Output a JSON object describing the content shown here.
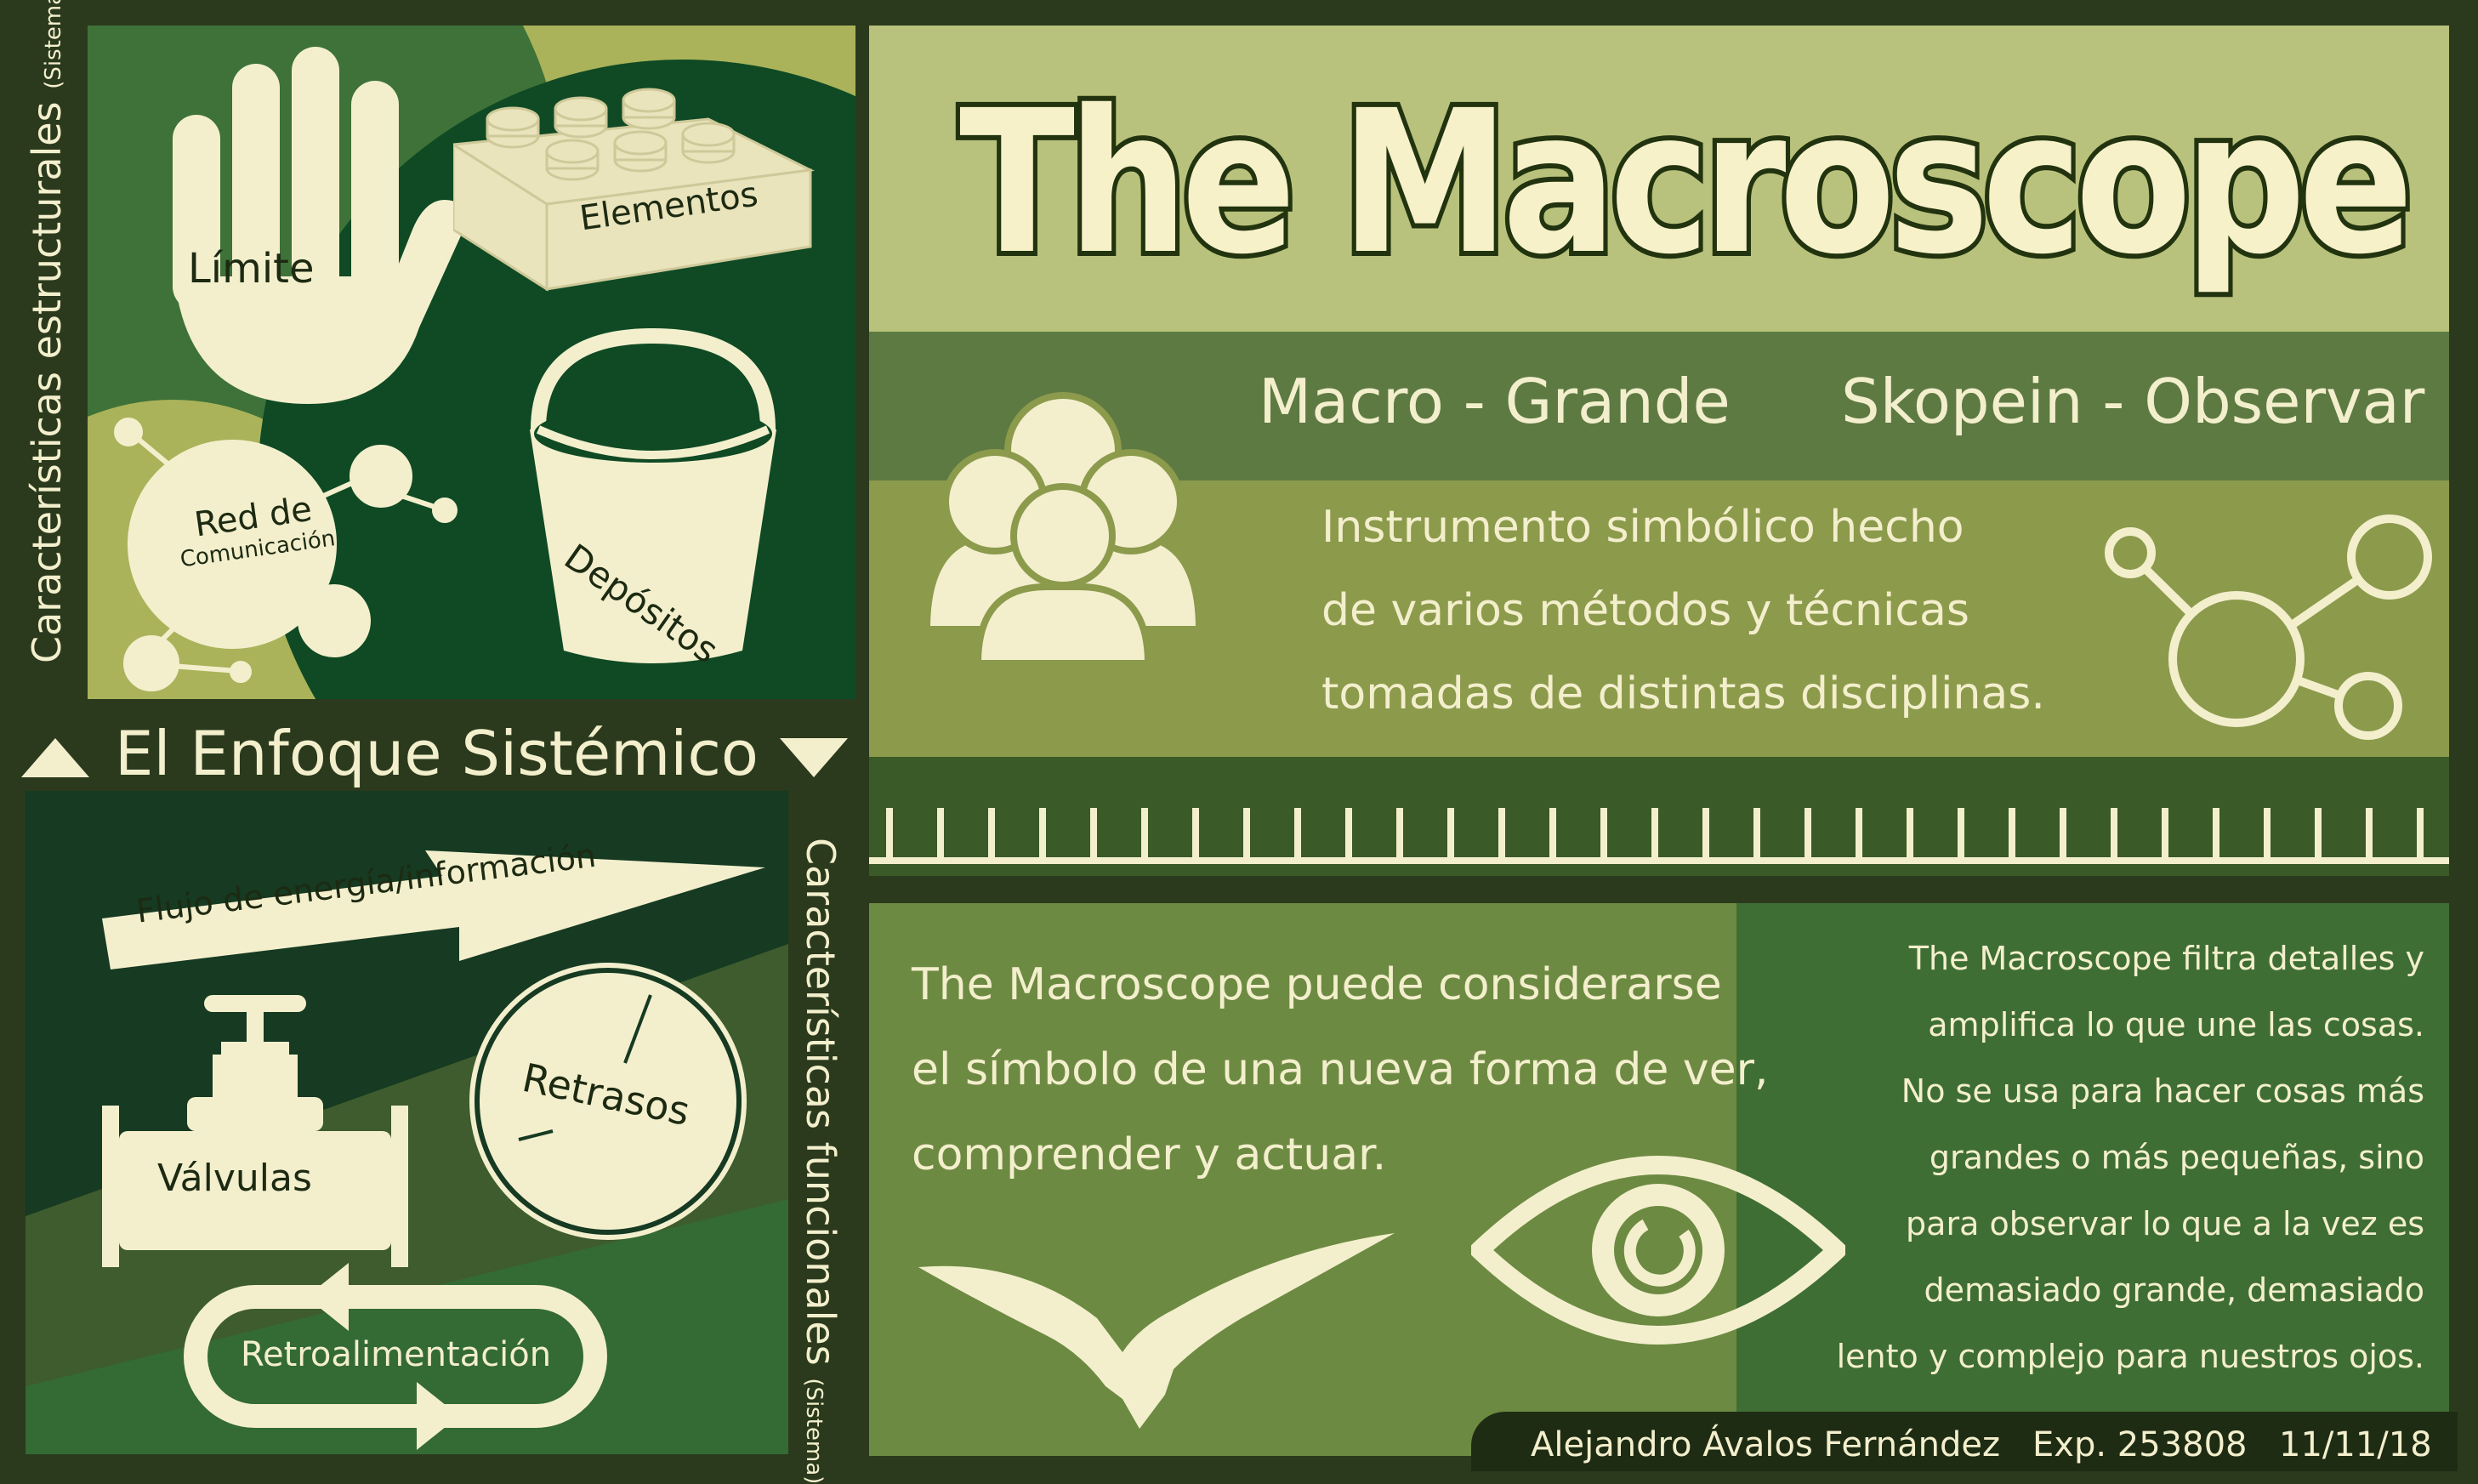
{
  "left": {
    "structural_label": "Características estructurales",
    "structural_sub": "(Sistema)",
    "functional_label": "Características funcionales",
    "functional_sub": "(Sistema)",
    "section_title": "El Enfoque Sistémico",
    "items": {
      "limite": "Límite",
      "elementos": "Elementos",
      "red_1": "Red de",
      "red_2": "Comunicación",
      "depositos": "Depósitos",
      "flujo": "Flujo de energía/información",
      "valvulas": "Válvulas",
      "retrasos": "Retrasos",
      "retro": "Retroalimentación"
    }
  },
  "right": {
    "title": "The Macroscope",
    "etym_macro": "Macro - Grande",
    "etym_skopein": "Skopein - Observar",
    "desc": [
      "Instrumento simbólico hecho",
      "de varios métodos y técnicas",
      "tomadas de distintas disciplinas."
    ],
    "symbol_text": [
      "The Macroscope puede considerarse",
      "el símbolo de una nueva forma de ver,",
      "comprender y actuar."
    ],
    "filter_text": [
      "The Macroscope filtra detalles y",
      "amplifica lo que une las cosas.",
      "No se usa para hacer cosas más",
      "grandes o más pequeñas, sino",
      "para observar lo que a la vez es",
      "demasiado grande, demasiado",
      "lento y complejo para nuestros ojos."
    ]
  },
  "footer": {
    "author": "Alejandro Ávalos Fernández",
    "exp": "Exp. 253808",
    "date": "11/11/18"
  },
  "colors": {
    "cream": "#f3efcd",
    "dark_bg": "#2b3a1d",
    "olive": "#9fa95a",
    "forest": "#3e7238",
    "dark_green": "#163a22"
  }
}
